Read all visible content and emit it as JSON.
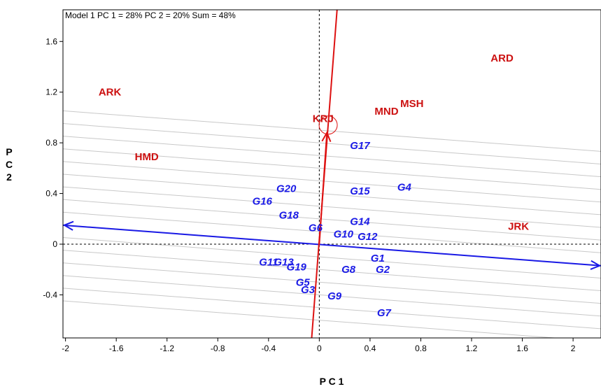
{
  "chart_data": {
    "type": "scatter",
    "title": "Model 1 PC 1 = 28% PC 2 = 20% Sum = 48%",
    "xlabel": "P C 1",
    "ylabel": "P C 2",
    "xlim": [
      -2.02,
      2.22
    ],
    "ylim": [
      -0.74,
      1.85
    ],
    "xticks": [
      "-2",
      "-1.6",
      "-1.2",
      "-0.8",
      "-0.4",
      "0",
      "0.4",
      "0.8",
      "1.2",
      "1.6",
      "2"
    ],
    "xtick_values": [
      -2,
      -1.6,
      -1.2,
      -0.8,
      -0.4,
      0,
      0.4,
      0.8,
      1.2,
      1.6,
      2
    ],
    "yticks": [
      "-0.4",
      "0",
      "0.4",
      "0.8",
      "1.2",
      "1.6"
    ],
    "ytick_values": [
      -0.4,
      0,
      0.4,
      0.8,
      1.2,
      1.6
    ],
    "environment_color": "#cc1111",
    "genotype_color": "#1a1ae6",
    "environments": [
      {
        "label": "ARD",
        "x": 1.44,
        "y": 1.47
      },
      {
        "label": "ARK",
        "x": -1.65,
        "y": 1.2
      },
      {
        "label": "HMD",
        "x": -1.36,
        "y": 0.69
      },
      {
        "label": "KRJ",
        "x": 0.03,
        "y": 0.99
      },
      {
        "label": "MND",
        "x": 0.53,
        "y": 1.05
      },
      {
        "label": "MSH",
        "x": 0.73,
        "y": 1.11
      },
      {
        "label": "JRK",
        "x": 1.57,
        "y": 0.14
      }
    ],
    "genotypes": [
      {
        "label": "G1",
        "x": 0.46,
        "y": -0.11
      },
      {
        "label": "G2",
        "x": 0.5,
        "y": -0.2
      },
      {
        "label": "G3",
        "x": -0.09,
        "y": -0.36
      },
      {
        "label": "G4",
        "x": 0.67,
        "y": 0.45
      },
      {
        "label": "G5",
        "x": -0.13,
        "y": -0.3
      },
      {
        "label": "G6",
        "x": -0.03,
        "y": 0.13
      },
      {
        "label": "G7",
        "x": 0.51,
        "y": -0.54
      },
      {
        "label": "G8",
        "x": 0.23,
        "y": -0.2
      },
      {
        "label": "G9",
        "x": 0.12,
        "y": -0.41
      },
      {
        "label": "G10",
        "x": 0.19,
        "y": 0.08
      },
      {
        "label": "G11",
        "x": -0.4,
        "y": -0.14
      },
      {
        "label": "G12",
        "x": 0.38,
        "y": 0.06
      },
      {
        "label": "G13",
        "x": -0.28,
        "y": -0.14
      },
      {
        "label": "G14",
        "x": 0.32,
        "y": 0.18
      },
      {
        "label": "G15",
        "x": 0.32,
        "y": 0.42
      },
      {
        "label": "G16",
        "x": -0.45,
        "y": 0.34
      },
      {
        "label": "G17",
        "x": 0.32,
        "y": 0.78
      },
      {
        "label": "G18",
        "x": -0.24,
        "y": 0.23
      },
      {
        "label": "G19",
        "x": -0.18,
        "y": -0.18
      },
      {
        "label": "G20",
        "x": -0.26,
        "y": 0.44
      }
    ],
    "aec_abscissa": {
      "x1": -2.02,
      "y1": 0.15,
      "x2": 2.22,
      "y2": -0.17,
      "color": "#1a1ae6"
    },
    "aec_ordinate": {
      "x1": -0.06,
      "y1": -0.74,
      "x2": 0.14,
      "y2": 1.85,
      "color": "#dd1111"
    },
    "arrow_tip": {
      "x": 0.06,
      "y": 0.88
    },
    "average_environment": {
      "x": 0.07,
      "y": 0.94
    },
    "band_color": "#c8c8c8",
    "grid": false
  }
}
